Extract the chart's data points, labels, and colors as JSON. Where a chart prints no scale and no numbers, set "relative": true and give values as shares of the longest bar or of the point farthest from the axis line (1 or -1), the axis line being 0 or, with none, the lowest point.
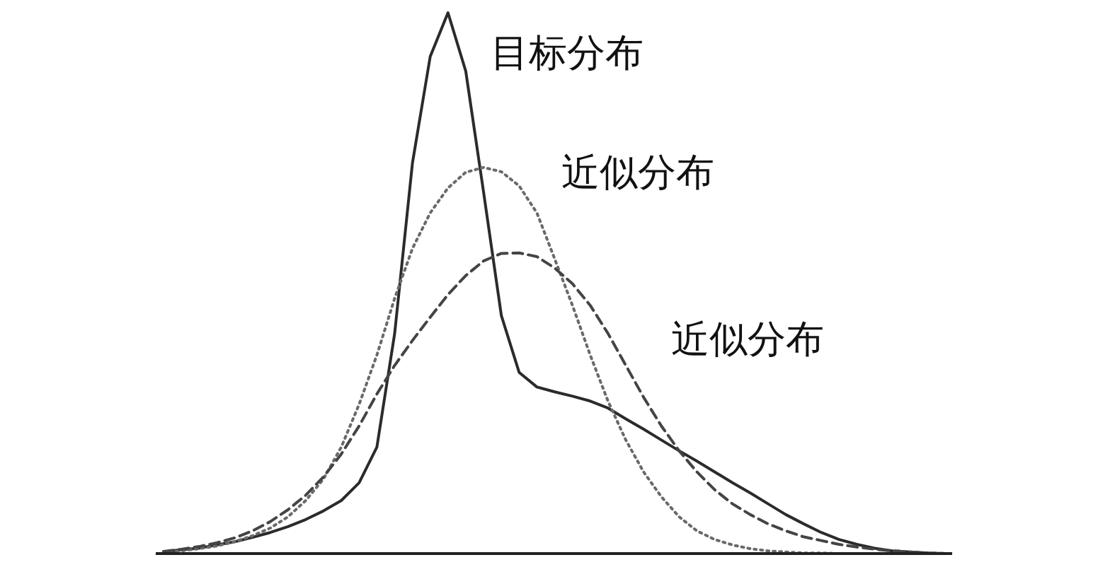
{
  "chart_data": {
    "type": "line",
    "relative": true,
    "categories": [
      null,
      null,
      null,
      null,
      null,
      null,
      null,
      null,
      null,
      null,
      null,
      null,
      null,
      null,
      null,
      null,
      null,
      null,
      null,
      null,
      null,
      null,
      null,
      null,
      null,
      null,
      null,
      null,
      null,
      null,
      null,
      null,
      null,
      null,
      null,
      null,
      null,
      null,
      null,
      null,
      null,
      null,
      null,
      null,
      null
    ],
    "series": [
      {
        "name": "目标分布",
        "color": "#2b2b2b",
        "line_style": "solid",
        "values": [
          0.003,
          0.007,
          0.01,
          0.016,
          0.022,
          0.03,
          0.039,
          0.05,
          0.063,
          0.079,
          0.098,
          0.131,
          0.197,
          0.407,
          0.722,
          0.919,
          1,
          0.892,
          0.669,
          0.44,
          0.335,
          0.308,
          0.299,
          0.291,
          0.282,
          0.269,
          0.249,
          0.23,
          0.21,
          0.19,
          0.171,
          0.151,
          0.131,
          0.112,
          0.092,
          0.072,
          0.055,
          0.039,
          0.026,
          0.017,
          0.01,
          0.005,
          0.003,
          0.001,
          0
        ]
      },
      {
        "name": "近似分布",
        "color": "#6a6a6a",
        "line_style": "dotted",
        "values": [
          0.003,
          0.005,
          0.009,
          0.014,
          0.022,
          0.033,
          0.047,
          0.068,
          0.098,
          0.138,
          0.197,
          0.276,
          0.367,
          0.472,
          0.564,
          0.63,
          0.676,
          0.705,
          0.714,
          0.706,
          0.68,
          0.63,
          0.545,
          0.459,
          0.367,
          0.282,
          0.21,
          0.151,
          0.105,
          0.068,
          0.042,
          0.026,
          0.016,
          0.009,
          0.005,
          0.003,
          0.001,
          0.001,
          0,
          0,
          0,
          0,
          0,
          0,
          0
        ]
      },
      {
        "name": "近似分布",
        "color": "#444444",
        "line_style": "dashed",
        "values": [
          0.004,
          0.008,
          0.013,
          0.02,
          0.029,
          0.042,
          0.059,
          0.081,
          0.108,
          0.142,
          0.184,
          0.236,
          0.295,
          0.348,
          0.394,
          0.437,
          0.479,
          0.514,
          0.541,
          0.555,
          0.556,
          0.549,
          0.528,
          0.499,
          0.459,
          0.407,
          0.348,
          0.289,
          0.236,
          0.19,
          0.151,
          0.118,
          0.092,
          0.072,
          0.055,
          0.042,
          0.031,
          0.024,
          0.017,
          0.012,
          0.008,
          0.005,
          0.003,
          0.001,
          0
        ]
      }
    ]
  }
}
